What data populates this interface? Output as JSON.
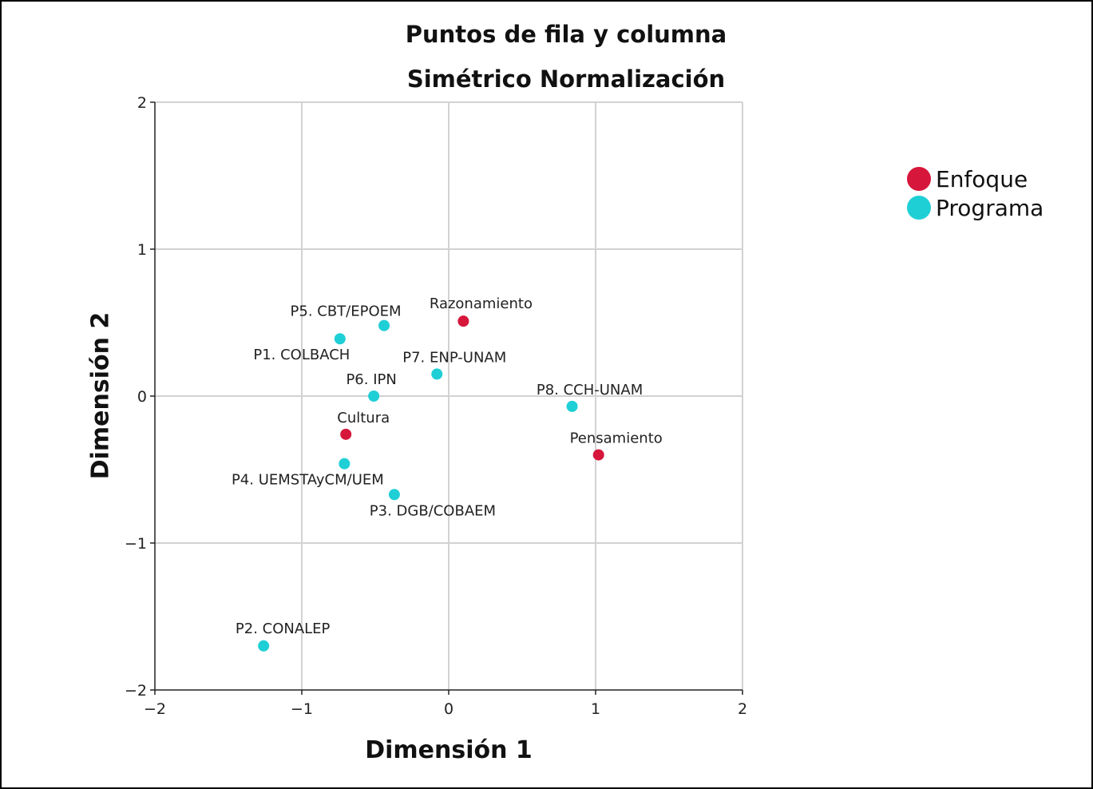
{
  "chart_data": {
    "type": "scatter",
    "title": "Puntos de fila y columna",
    "subtitle": "Simétrico Normalización",
    "xlabel": "Dimensión 1",
    "ylabel": "Dimensión 2",
    "xlim": [
      -2,
      2
    ],
    "ylim": [
      -2,
      2
    ],
    "xticks": [
      -2,
      -1,
      0,
      1,
      2
    ],
    "yticks": [
      -2,
      -1,
      0,
      1,
      2
    ],
    "xtick_labels": [
      "−2",
      "−1",
      "0",
      "1",
      "2"
    ],
    "ytick_labels": [
      "−2",
      "−1",
      "0",
      "1",
      "2"
    ],
    "grid": true,
    "legend_position": "right",
    "series": [
      {
        "name": "Enfoque",
        "color": "#d6163b",
        "points": [
          {
            "label": "Razonamiento",
            "x": 0.1,
            "y": 0.51
          },
          {
            "label": "Cultura",
            "x": -0.7,
            "y": -0.26
          },
          {
            "label": "Pensamiento",
            "x": 1.02,
            "y": -0.4
          }
        ]
      },
      {
        "name": "Programa",
        "color": "#1fcfd6",
        "points": [
          {
            "label": "P5. CBT/EPOEM",
            "x": -0.44,
            "y": 0.48
          },
          {
            "label": "P1. COLBACH",
            "x": -0.74,
            "y": 0.39
          },
          {
            "label": "P7. ENP-UNAM",
            "x": -0.08,
            "y": 0.15
          },
          {
            "label": "P6. IPN",
            "x": -0.51,
            "y": 0.0
          },
          {
            "label": "P8. CCH-UNAM",
            "x": 0.84,
            "y": -0.07
          },
          {
            "label": "P4. UEMSTAyCM/UEM",
            "x": -0.71,
            "y": -0.46
          },
          {
            "label": "P3. DGB/COBAEM",
            "x": -0.37,
            "y": -0.67
          },
          {
            "label": "P2. CONALEP",
            "x": -1.26,
            "y": -1.7
          }
        ]
      }
    ]
  }
}
